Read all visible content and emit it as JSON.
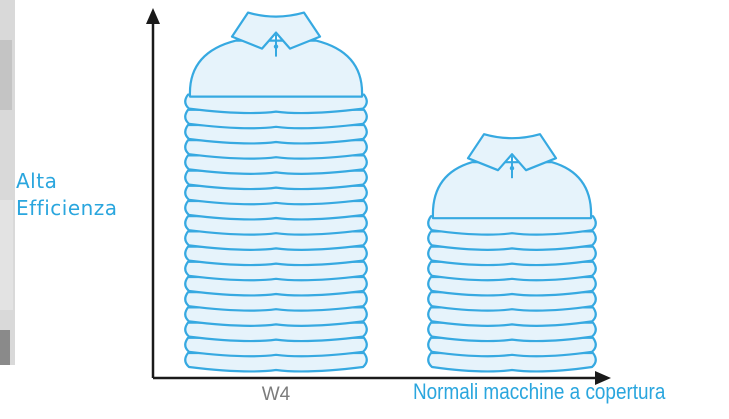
{
  "chart_data": {
    "type": "bar",
    "mark": "pictogram-stacked-shirts",
    "categories": [
      "W4",
      "Normali macchine a copertura"
    ],
    "values": [
      18,
      10
    ],
    "ylabel": [
      "Alta",
      "Efficienza"
    ],
    "xlabel": "Normali macchine a copertura",
    "ylim": [
      0,
      20
    ],
    "grid": false,
    "colors": {
      "shirt_fill": "#e6f3fb",
      "shirt_stroke": "#36a9e1",
      "axis": "#1a1a1a",
      "label_accent": "#2aa6de",
      "label_muted": "#7c7c7c"
    }
  },
  "decor": {
    "left_photo_edge": "appliance-photo-fragment"
  }
}
